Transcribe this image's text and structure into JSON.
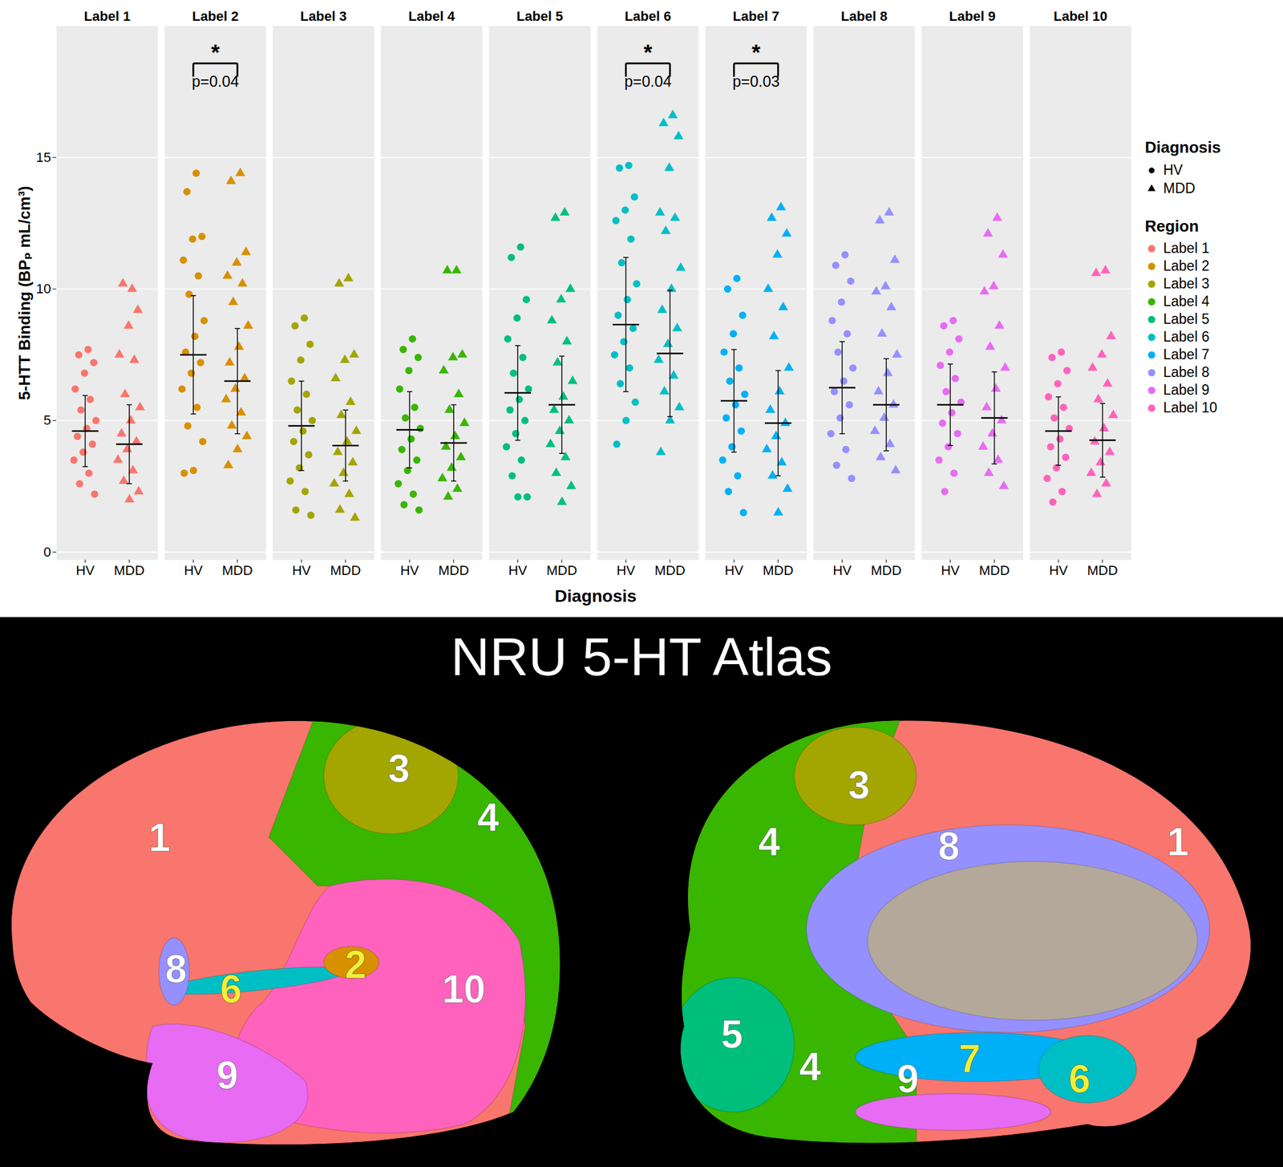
{
  "chart_data": {
    "type": "scatter",
    "ylabel": "5-HTT Binding (BPₚ mL/cm³)",
    "xlabel": "Diagnosis",
    "ylim": [
      -0.3,
      20
    ],
    "yticks": [
      0,
      5,
      10,
      15
    ],
    "grid": true,
    "legend": "right",
    "diagnosis_title": "Diagnosis",
    "region_title": "Region",
    "diagnosis": [
      {
        "name": "HV",
        "marker": "circle"
      },
      {
        "name": "MDD",
        "marker": "triangle"
      }
    ],
    "series": [
      {
        "name": "Label 1",
        "color": "#F8766D",
        "groups": [
          {
            "diagnosis": "HV",
            "mean": 4.6,
            "sd": 1.35,
            "values": [
              7.7,
              7.5,
              7.2,
              6.8,
              6.2,
              5.8,
              5.4,
              5.0,
              4.7,
              4.4,
              4.1,
              3.8,
              3.5,
              3.0,
              2.6,
              2.2
            ]
          },
          {
            "diagnosis": "MDD",
            "mean": 4.1,
            "sd": 1.5,
            "values": [
              10.0,
              10.2,
              9.2,
              8.6,
              7.5,
              7.3,
              6.0,
              5.5,
              5.0,
              4.5,
              4.2,
              3.9,
              3.5,
              3.1,
              2.7,
              2.3,
              2.0
            ]
          }
        ]
      },
      {
        "name": "Label 2",
        "color": "#D89000",
        "groups": [
          {
            "diagnosis": "HV",
            "mean": 7.5,
            "sd": 2.25,
            "values": [
              14.4,
              13.7,
              12.0,
              11.9,
              11.1,
              10.5,
              9.8,
              8.8,
              8.2,
              7.6,
              7.2,
              6.8,
              6.2,
              5.5,
              4.8,
              4.2,
              3.1,
              3.0
            ]
          },
          {
            "diagnosis": "MDD",
            "mean": 6.5,
            "sd": 2.0,
            "values": [
              14.4,
              14.1,
              11.4,
              11.0,
              10.5,
              10.2,
              9.5,
              8.6,
              7.8,
              7.2,
              6.6,
              6.2,
              5.8,
              5.3,
              4.8,
              4.4,
              3.9,
              3.3
            ]
          }
        ]
      },
      {
        "name": "Label 3",
        "color": "#A3A500",
        "groups": [
          {
            "diagnosis": "HV",
            "mean": 4.8,
            "sd": 1.7,
            "values": [
              8.9,
              8.6,
              7.9,
              7.3,
              6.5,
              6.0,
              5.4,
              5.0,
              4.6,
              4.2,
              3.7,
              3.2,
              2.7,
              2.3,
              1.6,
              1.4
            ]
          },
          {
            "diagnosis": "MDD",
            "mean": 4.05,
            "sd": 1.35,
            "values": [
              10.4,
              10.2,
              7.5,
              7.3,
              6.6,
              5.7,
              5.2,
              4.6,
              4.2,
              3.8,
              3.4,
              3.0,
              2.6,
              2.2,
              1.6,
              1.3
            ]
          }
        ]
      },
      {
        "name": "Label 4",
        "color": "#39B600",
        "groups": [
          {
            "diagnosis": "HV",
            "mean": 4.65,
            "sd": 1.45,
            "values": [
              8.1,
              7.7,
              7.4,
              6.9,
              6.2,
              5.5,
              5.1,
              4.7,
              4.3,
              3.9,
              3.5,
              3.1,
              2.6,
              2.2,
              1.8,
              1.6
            ]
          },
          {
            "diagnosis": "MDD",
            "mean": 4.15,
            "sd": 1.45,
            "values": [
              10.7,
              10.7,
              7.5,
              7.4,
              6.9,
              6.0,
              5.4,
              4.9,
              4.4,
              4.0,
              3.6,
              3.2,
              2.8,
              2.4,
              2.1
            ]
          }
        ]
      },
      {
        "name": "Label 5",
        "color": "#00BF7D",
        "groups": [
          {
            "diagnosis": "HV",
            "mean": 6.05,
            "sd": 1.8,
            "values": [
              11.6,
              11.2,
              9.6,
              8.9,
              8.1,
              7.4,
              6.8,
              6.2,
              5.8,
              5.4,
              5.0,
              4.5,
              4.0,
              3.5,
              2.9,
              2.1,
              2.1
            ]
          },
          {
            "diagnosis": "MDD",
            "mean": 5.6,
            "sd": 1.85,
            "values": [
              12.9,
              12.7,
              10.0,
              9.6,
              8.8,
              8.0,
              7.2,
              6.5,
              5.9,
              5.4,
              5.0,
              4.6,
              4.1,
              3.6,
              3.0,
              2.5,
              1.9
            ]
          }
        ]
      },
      {
        "name": "Label 6",
        "color": "#00BFC4",
        "groups": [
          {
            "diagnosis": "HV",
            "mean": 8.65,
            "sd": 2.55,
            "values": [
              14.7,
              14.6,
              13.5,
              13.0,
              12.6,
              11.9,
              11.0,
              10.2,
              9.6,
              9.0,
              8.5,
              8.0,
              7.5,
              7.0,
              6.4,
              5.7,
              5.0,
              4.1
            ]
          },
          {
            "diagnosis": "MDD",
            "mean": 7.55,
            "sd": 2.4,
            "values": [
              16.6,
              16.3,
              15.8,
              14.6,
              12.9,
              12.7,
              12.2,
              10.8,
              10.0,
              9.2,
              8.5,
              7.9,
              7.3,
              6.7,
              6.1,
              5.5,
              5.0,
              3.8
            ]
          }
        ]
      },
      {
        "name": "Label 7",
        "color": "#00B0F6",
        "groups": [
          {
            "diagnosis": "HV",
            "mean": 5.75,
            "sd": 1.95,
            "values": [
              10.4,
              10.0,
              9.0,
              8.3,
              7.6,
              7.0,
              6.5,
              6.0,
              5.6,
              5.1,
              4.6,
              4.0,
              3.5,
              2.9,
              2.3,
              1.5
            ]
          },
          {
            "diagnosis": "MDD",
            "mean": 4.9,
            "sd": 2.0,
            "values": [
              13.1,
              12.7,
              12.1,
              11.3,
              10.0,
              9.3,
              8.2,
              7.0,
              6.1,
              5.4,
              4.9,
              4.4,
              3.9,
              3.4,
              2.9,
              2.4,
              1.5
            ]
          }
        ]
      },
      {
        "name": "Label 8",
        "color": "#9590FF",
        "groups": [
          {
            "diagnosis": "HV",
            "mean": 6.25,
            "sd": 1.75,
            "values": [
              11.3,
              10.9,
              10.3,
              9.5,
              8.8,
              8.3,
              7.6,
              7.0,
              6.5,
              6.1,
              5.6,
              5.1,
              4.5,
              3.9,
              3.3,
              2.8
            ]
          },
          {
            "diagnosis": "MDD",
            "mean": 5.6,
            "sd": 1.75,
            "values": [
              12.9,
              12.6,
              11.1,
              10.1,
              9.9,
              9.3,
              8.3,
              7.5,
              6.8,
              6.1,
              5.6,
              5.1,
              4.6,
              4.1,
              3.6,
              3.1
            ]
          }
        ]
      },
      {
        "name": "Label 9",
        "color": "#E76BF3",
        "groups": [
          {
            "diagnosis": "HV",
            "mean": 5.6,
            "sd": 1.55,
            "values": [
              8.8,
              8.6,
              8.1,
              7.6,
              7.1,
              6.6,
              6.1,
              5.7,
              5.3,
              4.9,
              4.5,
              4.0,
              3.5,
              3.0,
              2.3
            ]
          },
          {
            "diagnosis": "MDD",
            "mean": 5.1,
            "sd": 1.75,
            "values": [
              12.7,
              12.1,
              11.3,
              10.1,
              9.9,
              8.6,
              7.8,
              7.0,
              6.2,
              5.5,
              5.0,
              4.5,
              4.0,
              3.5,
              3.0,
              2.5
            ]
          }
        ]
      },
      {
        "name": "Label 10",
        "color": "#FF62BC",
        "groups": [
          {
            "diagnosis": "HV",
            "mean": 4.6,
            "sd": 1.3,
            "values": [
              7.6,
              7.4,
              6.9,
              6.4,
              5.9,
              5.5,
              5.1,
              4.7,
              4.3,
              4.0,
              3.6,
              3.2,
              2.8,
              2.3,
              1.9
            ]
          },
          {
            "diagnosis": "MDD",
            "mean": 4.25,
            "sd": 1.4,
            "values": [
              10.7,
              10.6,
              8.2,
              7.5,
              7.0,
              6.4,
              5.8,
              5.2,
              4.7,
              4.2,
              3.8,
              3.4,
              3.0,
              2.6,
              2.2
            ]
          }
        ]
      }
    ],
    "annotations": [
      {
        "label": "Label 2",
        "text": "*",
        "p": "p=0.04"
      },
      {
        "label": "Label 6",
        "text": "*",
        "p": "p=0.04"
      },
      {
        "label": "Label 7",
        "text": "*",
        "p": "p=0.03"
      }
    ]
  },
  "atlas": {
    "title": "NRU 5-HT Atlas",
    "lateral_view": [
      1,
      3,
      4,
      8,
      6,
      2,
      10,
      9
    ],
    "medial_view": [
      3,
      8,
      1,
      4,
      5,
      4,
      9,
      7,
      6
    ]
  }
}
